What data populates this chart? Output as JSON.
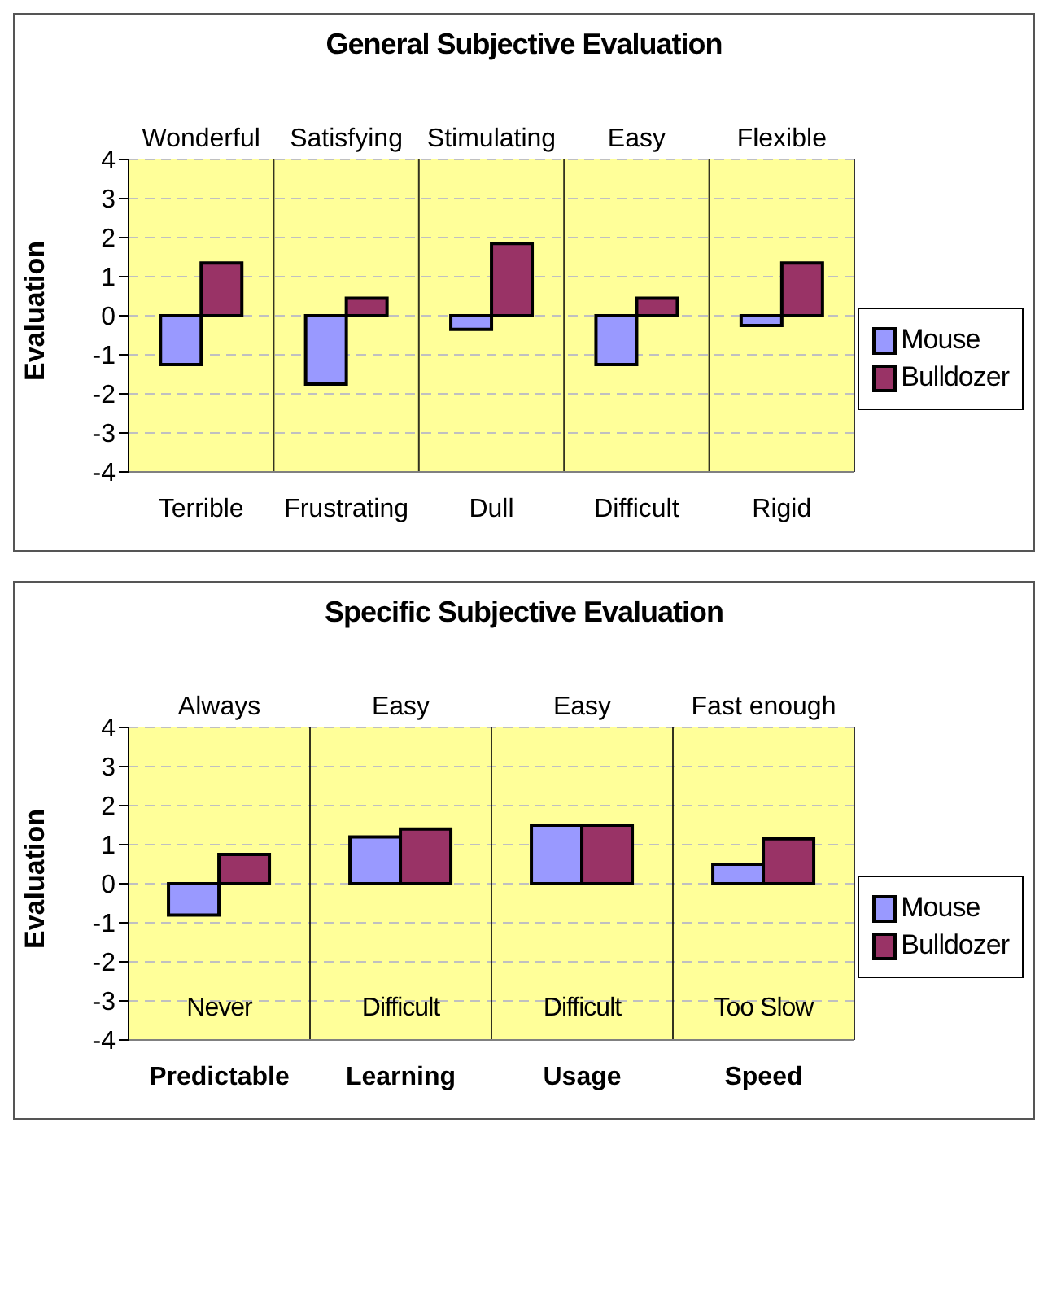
{
  "chart_data": [
    {
      "type": "bar",
      "title": "General Subjective Evaluation",
      "ylabel": "Evaluation",
      "categories": [
        "Terrible",
        "Frustrating",
        "Dull",
        "Difficult",
        "Rigid"
      ],
      "annotations": [
        "Wonderful",
        "Satisfying",
        "Stimulating",
        "Easy",
        "Flexible"
      ],
      "series": [
        {
          "name": "Mouse",
          "color": "#9999ff",
          "values": [
            -1.25,
            -1.75,
            -0.35,
            -1.25,
            -0.25
          ]
        },
        {
          "name": "Bulldozer",
          "color": "#993366",
          "values": [
            1.35,
            0.45,
            1.85,
            0.45,
            1.35
          ]
        }
      ],
      "ylim": [
        -4,
        4
      ],
      "yticks": [
        -4,
        -3,
        -2,
        -1,
        0,
        1,
        2,
        3,
        4
      ],
      "grid": true,
      "legend": "right"
    },
    {
      "type": "bar",
      "title": "Specific Subjective Evaluation",
      "ylabel": "Evaluation",
      "categories": [
        "Predictable",
        "Learning",
        "Usage",
        "Speed"
      ],
      "annotations": [
        "Always",
        "Easy",
        "Easy",
        "Fast enough",
        "Never",
        "Difficult",
        "Difficult",
        "Too Slow"
      ],
      "series": [
        {
          "name": "Mouse",
          "color": "#9999ff",
          "values": [
            -0.8,
            1.2,
            1.5,
            0.5
          ]
        },
        {
          "name": "Bulldozer",
          "color": "#993366",
          "values": [
            0.75,
            1.4,
            1.5,
            1.15
          ]
        }
      ],
      "ylim": [
        -4,
        4
      ],
      "yticks": [
        -4,
        -3,
        -2,
        -1,
        0,
        1,
        2,
        3,
        4
      ],
      "grid": true,
      "legend": "right"
    }
  ]
}
